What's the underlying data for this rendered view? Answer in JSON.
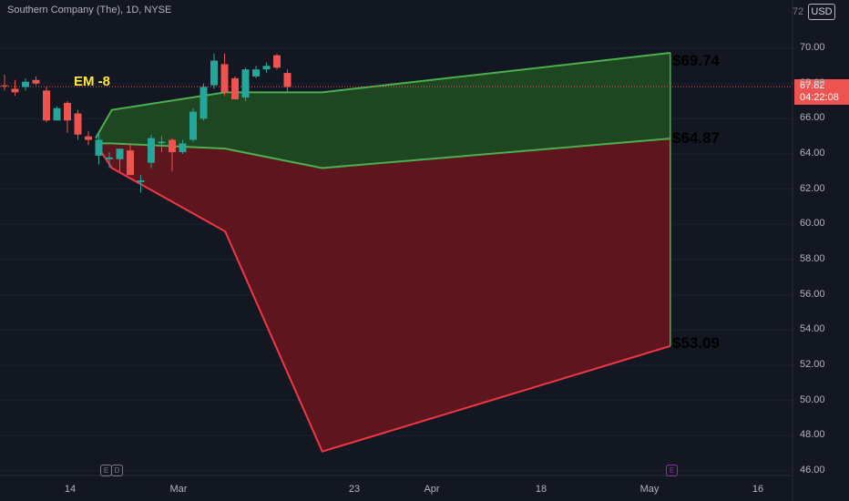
{
  "header": {
    "title": "Southern Company (The), 1D, NYSE",
    "currency": "USD",
    "clipped_tick": "72"
  },
  "current_price": {
    "value": "67.82",
    "countdown": "04:22:08"
  },
  "annotation": {
    "text": "EM -8"
  },
  "levels": [
    {
      "label": "$69.74",
      "color": "#4caf50"
    },
    {
      "label": "$64.87",
      "color": "#ffeb3b"
    },
    {
      "label": "$53.09",
      "color": "#f23645"
    }
  ],
  "events": [
    {
      "letter": "E"
    },
    {
      "letter": "D"
    },
    {
      "letter": "E"
    }
  ],
  "chart_data": {
    "type": "candlestick",
    "symbol": "Southern Company (The)",
    "interval": "1D",
    "exchange": "NYSE",
    "y_axis": {
      "ticks": [
        "70.00",
        "68.00",
        "66.00",
        "64.00",
        "62.00",
        "60.00",
        "58.00",
        "56.00",
        "54.00",
        "52.00",
        "50.00",
        "48.00",
        "46.00"
      ],
      "range": [
        45.7,
        72.4
      ],
      "currency": "USD"
    },
    "x_axis": {
      "ticks": [
        "14",
        "Mar",
        "23",
        "Apr",
        "18",
        "May",
        "16"
      ]
    },
    "colors": {
      "up": "#26a69a",
      "down": "#ef5350",
      "upper_band": "#4caf50",
      "lower_band": "#f23645",
      "upper_fill": "#1e4620",
      "lower_fill": "#5d161d"
    },
    "candles": [
      {
        "o": 67.9,
        "h": 68.5,
        "l": 67.6,
        "c": 67.85
      },
      {
        "o": 67.7,
        "h": 68.2,
        "l": 67.3,
        "c": 67.5
      },
      {
        "o": 67.8,
        "h": 68.3,
        "l": 67.6,
        "c": 68.1
      },
      {
        "o": 68.2,
        "h": 68.4,
        "l": 67.9,
        "c": 68.0
      },
      {
        "o": 67.6,
        "h": 67.8,
        "l": 65.8,
        "c": 65.9
      },
      {
        "o": 65.9,
        "h": 66.7,
        "l": 65.9,
        "c": 66.6
      },
      {
        "o": 66.9,
        "h": 67.0,
        "l": 65.2,
        "c": 65.9
      },
      {
        "o": 66.3,
        "h": 66.5,
        "l": 64.8,
        "c": 65.1
      },
      {
        "o": 65.0,
        "h": 65.3,
        "l": 64.5,
        "c": 64.8
      },
      {
        "o": 63.9,
        "h": 65.2,
        "l": 63.4,
        "c": 64.8
      },
      {
        "o": 63.7,
        "h": 64.1,
        "l": 63.2,
        "c": 63.8
      },
      {
        "o": 63.7,
        "h": 64.2,
        "l": 63.0,
        "c": 64.3
      },
      {
        "o": 64.2,
        "h": 64.6,
        "l": 62.8,
        "c": 62.8
      },
      {
        "o": 62.4,
        "h": 62.8,
        "l": 61.8,
        "c": 62.5
      },
      {
        "o": 63.5,
        "h": 65.1,
        "l": 63.2,
        "c": 64.9
      },
      {
        "o": 64.6,
        "h": 65.0,
        "l": 64.1,
        "c": 64.7
      },
      {
        "o": 64.8,
        "h": 64.9,
        "l": 63.0,
        "c": 64.1
      },
      {
        "o": 64.1,
        "h": 64.8,
        "l": 64.0,
        "c": 64.6
      },
      {
        "o": 64.8,
        "h": 66.6,
        "l": 64.7,
        "c": 66.4
      },
      {
        "o": 66.0,
        "h": 68.0,
        "l": 65.9,
        "c": 67.8
      },
      {
        "o": 67.9,
        "h": 69.7,
        "l": 67.7,
        "c": 69.3
      },
      {
        "o": 69.1,
        "h": 69.7,
        "l": 67.3,
        "c": 67.5
      },
      {
        "o": 68.3,
        "h": 68.4,
        "l": 67.1,
        "c": 67.1
      },
      {
        "o": 67.2,
        "h": 68.9,
        "l": 67.0,
        "c": 68.8
      },
      {
        "o": 68.4,
        "h": 69.0,
        "l": 68.3,
        "c": 68.8
      },
      {
        "o": 68.8,
        "h": 69.2,
        "l": 68.6,
        "c": 69.0
      },
      {
        "o": 69.6,
        "h": 69.7,
        "l": 68.8,
        "c": 68.9
      },
      {
        "o": 68.6,
        "h": 68.8,
        "l": 67.5,
        "c": 67.8
      }
    ],
    "expected_move": {
      "upper": [
        [
          0,
          64.9
        ],
        [
          1,
          66.5
        ],
        [
          8,
          67.5
        ],
        [
          14,
          67.5
        ],
        [
          35.5,
          69.74
        ]
      ],
      "middle": [
        [
          0,
          64.6
        ],
        [
          1,
          64.6
        ],
        [
          8,
          64.3
        ],
        [
          14,
          63.2
        ],
        [
          35.5,
          64.87
        ]
      ],
      "lower": [
        [
          0,
          64.6
        ],
        [
          1,
          63.2
        ],
        [
          8,
          59.6
        ],
        [
          14,
          47.1
        ],
        [
          35.5,
          53.09
        ]
      ],
      "labels": {
        "upper": 69.74,
        "middle": 64.87,
        "lower": 53.09
      }
    }
  }
}
